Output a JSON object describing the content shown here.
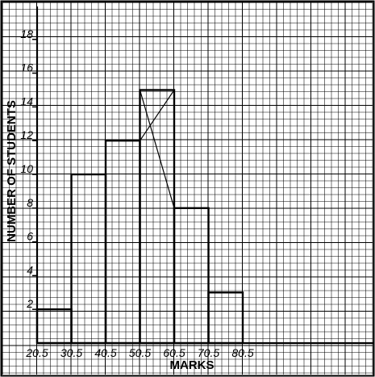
{
  "chart_data": {
    "type": "bar",
    "subtype": "histogram",
    "bins": [
      {
        "from": 20.5,
        "to": 30.5,
        "value": 2
      },
      {
        "from": 30.5,
        "to": 40.5,
        "value": 10
      },
      {
        "from": 40.5,
        "to": 50.5,
        "value": 12
      },
      {
        "from": 50.5,
        "to": 60.5,
        "value": 15
      },
      {
        "from": 60.5,
        "to": 70.5,
        "value": 8
      },
      {
        "from": 70.5,
        "to": 80.5,
        "value": 3
      }
    ],
    "x_ticks": [
      "20.5",
      "30.5",
      "40.5",
      "50.5",
      "60.5",
      "70.5",
      "80.5"
    ],
    "y_ticks": [
      "2",
      "4",
      "6",
      "8",
      "10",
      "12",
      "14",
      "16",
      "18"
    ],
    "xlabel": "MARKS",
    "ylabel": "NUMBER OF STUDENTS",
    "xlim": [
      20.5,
      80.5
    ],
    "ylim": [
      0,
      20
    ],
    "grid": true,
    "annotation": "mode construction lines drawn from top corners of the tallest bar to adjacent bars"
  }
}
